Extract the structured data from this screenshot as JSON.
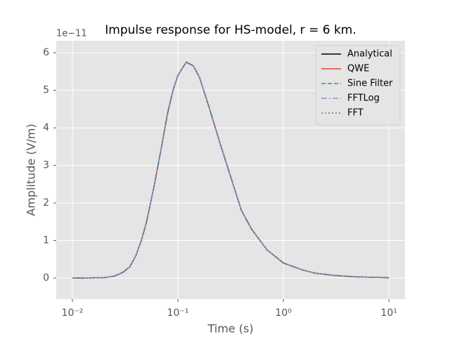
{
  "chart_data": {
    "type": "line",
    "title": "Impulse response for HS-model, r = 6 km.",
    "xlabel": "Time (s)",
    "ylabel": "Amplitude (V/m)",
    "y_offset_label": "1e−11",
    "xscale": "log",
    "grid": true,
    "legend": "upper right",
    "x": [
      0.01,
      0.02,
      0.025,
      0.03,
      0.035,
      0.04,
      0.045,
      0.05,
      0.06,
      0.07,
      0.08,
      0.09,
      0.1,
      0.12,
      0.14,
      0.16,
      0.2,
      0.25,
      0.3,
      0.4,
      0.5,
      0.7,
      1,
      1.5,
      2,
      3,
      5,
      10
    ],
    "series": [
      {
        "name": "Analytical",
        "color": "#000000",
        "dash": "solid",
        "values": [
          0,
          0.01,
          0.05,
          0.15,
          0.3,
          0.6,
          1.0,
          1.45,
          2.5,
          3.5,
          4.4,
          5.0,
          5.4,
          5.75,
          5.65,
          5.35,
          4.5,
          3.6,
          2.9,
          1.8,
          1.3,
          0.75,
          0.4,
          0.22,
          0.13,
          0.07,
          0.03,
          0.01
        ]
      },
      {
        "name": "QWE",
        "color": "#E24A33",
        "dash": "solid",
        "values": [
          0,
          0.01,
          0.05,
          0.15,
          0.3,
          0.6,
          1.0,
          1.45,
          2.5,
          3.5,
          4.4,
          5.0,
          5.4,
          5.75,
          5.65,
          5.35,
          4.5,
          3.6,
          2.9,
          1.8,
          1.3,
          0.75,
          0.4,
          0.22,
          0.13,
          0.07,
          0.03,
          0.01
        ]
      },
      {
        "name": "Sine Filter",
        "color": "#348ABD",
        "dash": "dashed",
        "values": [
          0,
          0.01,
          0.05,
          0.15,
          0.3,
          0.6,
          1.0,
          1.45,
          2.5,
          3.5,
          4.4,
          5.0,
          5.4,
          5.75,
          5.65,
          5.35,
          4.5,
          3.6,
          2.9,
          1.8,
          1.3,
          0.75,
          0.4,
          0.22,
          0.13,
          0.07,
          0.03,
          0.01
        ]
      },
      {
        "name": "FFTLog",
        "color": "#988ED5",
        "dash": "dashdot",
        "values": [
          0,
          0.01,
          0.05,
          0.15,
          0.3,
          0.6,
          1.0,
          1.45,
          2.5,
          3.5,
          4.4,
          5.0,
          5.4,
          5.75,
          5.65,
          5.35,
          4.5,
          3.6,
          2.9,
          1.8,
          1.3,
          0.75,
          0.4,
          0.22,
          0.13,
          0.07,
          0.03,
          0.01
        ]
      },
      {
        "name": "FFT",
        "color": "#777777",
        "dash": "dotted",
        "values": [
          0,
          0.01,
          0.05,
          0.15,
          0.3,
          0.6,
          1.0,
          1.45,
          2.5,
          3.5,
          4.4,
          5.0,
          5.4,
          5.75,
          5.65,
          5.35,
          4.5,
          3.6,
          2.9,
          1.8,
          1.3,
          0.75,
          0.4,
          0.22,
          0.13,
          0.07,
          0.03,
          0.01
        ]
      }
    ],
    "xlim": [
      0.00703,
      14.2
    ],
    "xticks": [
      {
        "value": 0.01,
        "label": "10⁻²"
      },
      {
        "value": 0.1,
        "label": "10⁻¹"
      },
      {
        "value": 1,
        "label": "10⁰"
      },
      {
        "value": 10,
        "label": "10¹"
      }
    ],
    "ylim": [
      -0.56,
      6.32
    ],
    "yticks": [
      0,
      1,
      2,
      3,
      4,
      5,
      6
    ]
  }
}
